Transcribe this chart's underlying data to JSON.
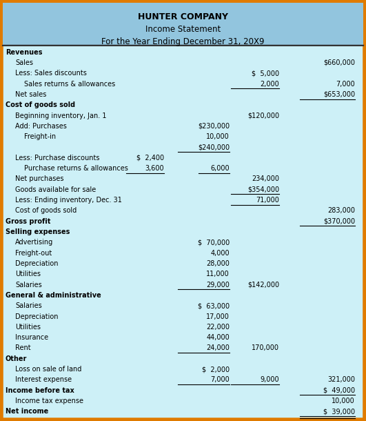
{
  "title_lines": [
    "HUNTER COMPANY",
    "Income Statement",
    "For the Year Ending December 31, 20X9"
  ],
  "bg_color": "#cdf0f7",
  "header_bg": "#92c5de",
  "content_bg": "#cdf0f7",
  "border_color": "#e07b00",
  "rows": [
    {
      "label": "Revenues",
      "c1": "",
      "c2": "",
      "c3": "",
      "c4": "",
      "bold": true,
      "ind": 0
    },
    {
      "label": "Sales",
      "c1": "",
      "c2": "",
      "c3": "",
      "c4": "$660,000",
      "bold": false,
      "ind": 1
    },
    {
      "label": "Less: Sales discounts",
      "c1": "",
      "c2": "",
      "c3": "$  5,000",
      "c4": "",
      "bold": false,
      "ind": 1
    },
    {
      "label": "Sales returns & allowances",
      "c1": "",
      "c2": "",
      "c3": "2,000",
      "c4": "7,000",
      "bold": false,
      "ind": 2,
      "ul_c3": true
    },
    {
      "label": "Net sales",
      "c1": "",
      "c2": "",
      "c3": "",
      "c4": "$653,000",
      "bold": false,
      "ind": 1,
      "ul_c4": true
    },
    {
      "label": "Cost of goods sold",
      "c1": "",
      "c2": "",
      "c3": "",
      "c4": "",
      "bold": true,
      "ind": 0
    },
    {
      "label": "Beginning inventory, Jan. 1",
      "c1": "",
      "c2": "",
      "c3": "$120,000",
      "c4": "",
      "bold": false,
      "ind": 1
    },
    {
      "label": "Add: Purchases",
      "c1": "",
      "c2": "$230,000",
      "c3": "",
      "c4": "",
      "bold": false,
      "ind": 1
    },
    {
      "label": "Freight-in",
      "c1": "",
      "c2": "10,000",
      "c3": "",
      "c4": "",
      "bold": false,
      "ind": 2
    },
    {
      "label": "",
      "c1": "",
      "c2": "$240,000",
      "c3": "",
      "c4": "",
      "bold": false,
      "ind": 0,
      "ul_c2": true
    },
    {
      "label": "Less: Purchase discounts",
      "c1": "$  2,400",
      "c2": "",
      "c3": "",
      "c4": "",
      "bold": false,
      "ind": 1
    },
    {
      "label": "Purchase returns & allowances",
      "c1": "3,600",
      "c2": "6,000",
      "c3": "",
      "c4": "",
      "bold": false,
      "ind": 2,
      "ul_c1": true,
      "ul_c2b": true
    },
    {
      "label": "Net purchases",
      "c1": "",
      "c2": "",
      "c3": "234,000",
      "c4": "",
      "bold": false,
      "ind": 1
    },
    {
      "label": "Goods available for sale",
      "c1": "",
      "c2": "",
      "c3": "$354,000",
      "c4": "",
      "bold": false,
      "ind": 1,
      "ul_c3": true
    },
    {
      "label": "Less: Ending inventory, Dec. 31",
      "c1": "",
      "c2": "",
      "c3": "71,000",
      "c4": "",
      "bold": false,
      "ind": 1
    },
    {
      "label": "Cost of goods sold",
      "c1": "",
      "c2": "",
      "c3": "",
      "c4": "283,000",
      "bold": false,
      "ind": 1,
      "ul_c3_above": true
    },
    {
      "label": "Gross profit",
      "c1": "",
      "c2": "",
      "c3": "",
      "c4": "$370,000",
      "bold": true,
      "ind": 0,
      "ul_c4": true
    },
    {
      "label": "Selling expenses",
      "c1": "",
      "c2": "",
      "c3": "",
      "c4": "",
      "bold": true,
      "ind": 0
    },
    {
      "label": "Advertising",
      "c1": "",
      "c2": "$  70,000",
      "c3": "",
      "c4": "",
      "bold": false,
      "ind": 1
    },
    {
      "label": "Freight-out",
      "c1": "",
      "c2": "4,000",
      "c3": "",
      "c4": "",
      "bold": false,
      "ind": 1
    },
    {
      "label": "Depreciation",
      "c1": "",
      "c2": "28,000",
      "c3": "",
      "c4": "",
      "bold": false,
      "ind": 1
    },
    {
      "label": "Utilities",
      "c1": "",
      "c2": "11,000",
      "c3": "",
      "c4": "",
      "bold": false,
      "ind": 1
    },
    {
      "label": "Salaries",
      "c1": "",
      "c2": "29,000",
      "c3": "$142,000",
      "c4": "",
      "bold": false,
      "ind": 1,
      "ul_c2": true
    },
    {
      "label": "General & administrative",
      "c1": "",
      "c2": "",
      "c3": "",
      "c4": "",
      "bold": true,
      "ind": 0
    },
    {
      "label": "Salaries",
      "c1": "",
      "c2": "$  63,000",
      "c3": "",
      "c4": "",
      "bold": false,
      "ind": 1
    },
    {
      "label": "Depreciation",
      "c1": "",
      "c2": "17,000",
      "c3": "",
      "c4": "",
      "bold": false,
      "ind": 1
    },
    {
      "label": "Utilities",
      "c1": "",
      "c2": "22,000",
      "c3": "",
      "c4": "",
      "bold": false,
      "ind": 1
    },
    {
      "label": "Insurance",
      "c1": "",
      "c2": "44,000",
      "c3": "",
      "c4": "",
      "bold": false,
      "ind": 1
    },
    {
      "label": "Rent",
      "c1": "",
      "c2": "24,000",
      "c3": "170,000",
      "c4": "",
      "bold": false,
      "ind": 1,
      "ul_c2": true
    },
    {
      "label": "Other",
      "c1": "",
      "c2": "",
      "c3": "",
      "c4": "",
      "bold": true,
      "ind": 0
    },
    {
      "label": "Loss on sale of land",
      "c1": "",
      "c2": "$  2,000",
      "c3": "",
      "c4": "",
      "bold": false,
      "ind": 1
    },
    {
      "label": "Interest expense",
      "c1": "",
      "c2": "7,000",
      "c3": "9,000",
      "c4": "321,000",
      "bold": false,
      "ind": 1,
      "ul_c2": true,
      "ul_c3": true
    },
    {
      "label": "Income before tax",
      "c1": "",
      "c2": "",
      "c3": "",
      "c4": "$  49,000",
      "bold": true,
      "ind": 0,
      "ul_c4": true
    },
    {
      "label": "Income tax expense",
      "c1": "",
      "c2": "",
      "c3": "",
      "c4": "10,000",
      "bold": false,
      "ind": 1
    },
    {
      "label": "Net income",
      "c1": "",
      "c2": "",
      "c3": "",
      "c4": "$  39,000",
      "bold": true,
      "ind": 0,
      "dbl_ul_c4": true
    }
  ]
}
